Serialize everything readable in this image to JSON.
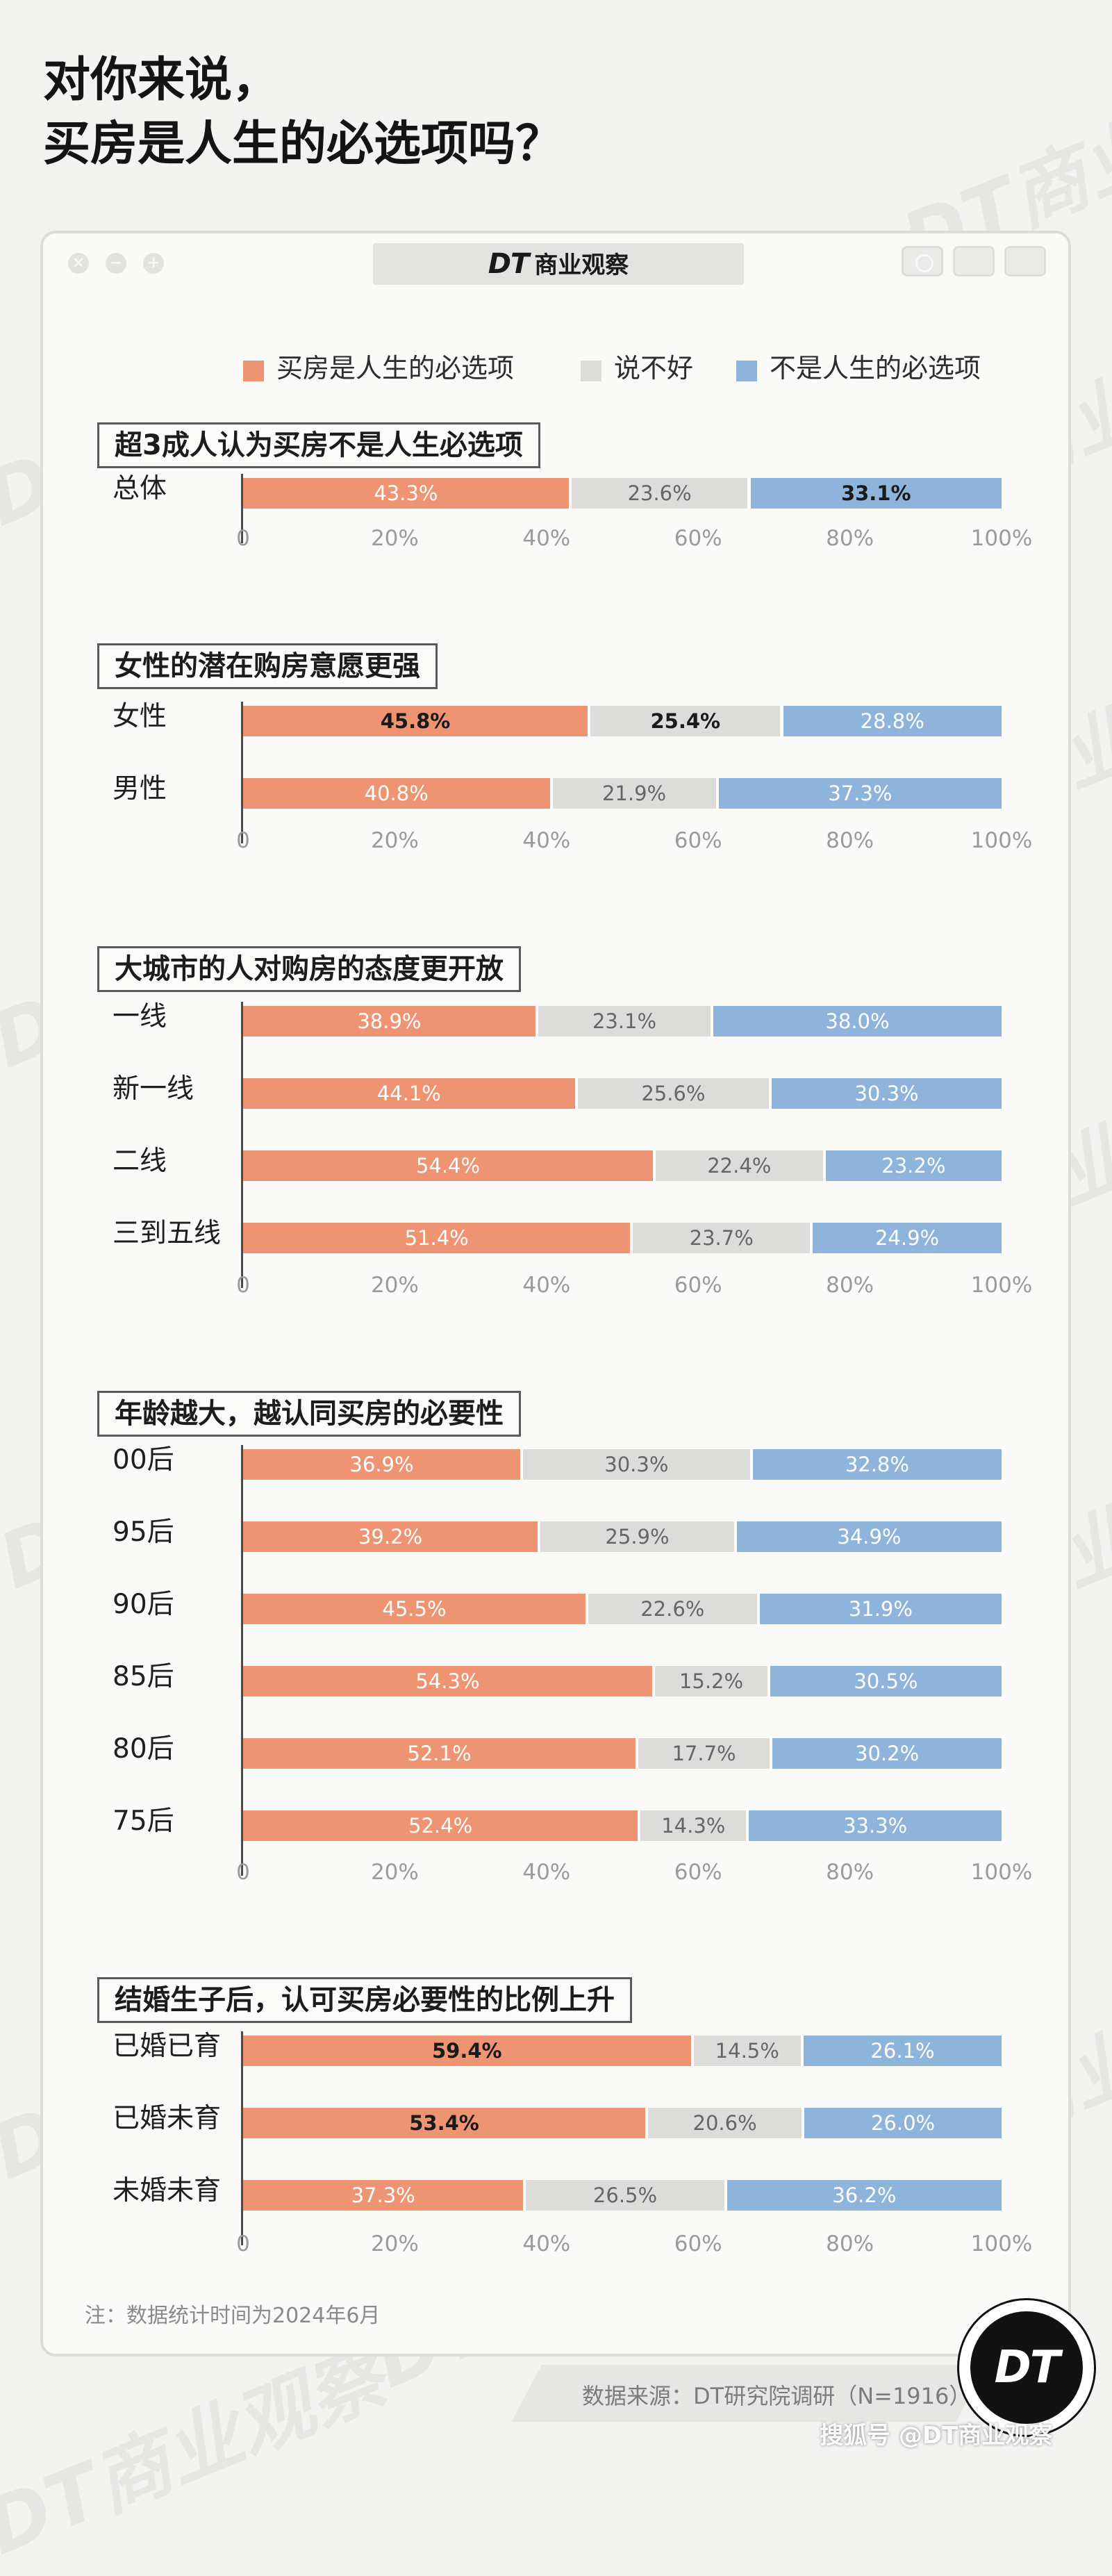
{
  "page": {
    "title_line1": "对你来说，",
    "title_line2": "买房是人生的必选项吗？",
    "watermark": "DT商业观察"
  },
  "panel": {
    "brand_mark": "DT",
    "brand_name": "商业观察"
  },
  "legend": [
    {
      "label": "买房是人生的必选项",
      "color": "#ef9472"
    },
    {
      "label": "说不好",
      "color": "#dcdcdb"
    },
    {
      "label": "不是人生的必选项",
      "color": "#8eb4dc"
    }
  ],
  "chart_data": {
    "type": "bar",
    "orientation": "horizontal",
    "stacked": true,
    "unit": "%",
    "xlim": [
      0,
      100
    ],
    "x_ticks": [
      "0",
      "20%",
      "40%",
      "60%",
      "80%",
      "100%"
    ],
    "series": [
      {
        "name": "买房是人生的必选项",
        "color": "#ef9472"
      },
      {
        "name": "说不好",
        "color": "#dcdcdb"
      },
      {
        "name": "不是人生的必选项",
        "color": "#8eb4dc"
      }
    ],
    "groups": [
      {
        "title": "超3成人认为买房不是人生必选项",
        "rows": [
          {
            "label": "总体",
            "values": [
              43.3,
              23.6,
              33.1
            ],
            "value_labels": [
              "43.3%",
              "23.6%",
              "33.1%"
            ],
            "bold": [
              false,
              false,
              true
            ]
          }
        ]
      },
      {
        "title": "女性的潜在购房意愿更强",
        "rows": [
          {
            "label": "女性",
            "values": [
              45.8,
              25.4,
              28.8
            ],
            "value_labels": [
              "45.8%",
              "25.4%",
              "28.8%"
            ],
            "bold": [
              true,
              true,
              false
            ]
          },
          {
            "label": "男性",
            "values": [
              40.8,
              21.9,
              37.3
            ],
            "value_labels": [
              "40.8%",
              "21.9%",
              "37.3%"
            ],
            "bold": [
              false,
              false,
              false
            ]
          }
        ]
      },
      {
        "title": "大城市的人对购房的态度更开放",
        "rows": [
          {
            "label": "一线",
            "values": [
              38.9,
              23.1,
              38.0
            ],
            "value_labels": [
              "38.9%",
              "23.1%",
              "38.0%"
            ],
            "bold": [
              false,
              false,
              false
            ]
          },
          {
            "label": "新一线",
            "values": [
              44.1,
              25.6,
              30.3
            ],
            "value_labels": [
              "44.1%",
              "25.6%",
              "30.3%"
            ],
            "bold": [
              false,
              false,
              false
            ]
          },
          {
            "label": "二线",
            "values": [
              54.4,
              22.4,
              23.2
            ],
            "value_labels": [
              "54.4%",
              "22.4%",
              "23.2%"
            ],
            "bold": [
              false,
              false,
              false
            ]
          },
          {
            "label": "三到五线",
            "values": [
              51.4,
              23.7,
              24.9
            ],
            "value_labels": [
              "51.4%",
              "23.7%",
              "24.9%"
            ],
            "bold": [
              false,
              false,
              false
            ]
          }
        ]
      },
      {
        "title": "年龄越大，越认同买房的必要性",
        "rows": [
          {
            "label": "00后",
            "values": [
              36.9,
              30.3,
              32.8
            ],
            "value_labels": [
              "36.9%",
              "30.3%",
              "32.8%"
            ],
            "bold": [
              false,
              false,
              false
            ]
          },
          {
            "label": "95后",
            "values": [
              39.2,
              25.9,
              34.9
            ],
            "value_labels": [
              "39.2%",
              "25.9%",
              "34.9%"
            ],
            "bold": [
              false,
              false,
              false
            ]
          },
          {
            "label": "90后",
            "values": [
              45.5,
              22.6,
              31.9
            ],
            "value_labels": [
              "45.5%",
              "22.6%",
              "31.9%"
            ],
            "bold": [
              false,
              false,
              false
            ]
          },
          {
            "label": "85后",
            "values": [
              54.3,
              15.2,
              30.5
            ],
            "value_labels": [
              "54.3%",
              "15.2%",
              "30.5%"
            ],
            "bold": [
              false,
              false,
              false
            ]
          },
          {
            "label": "80后",
            "values": [
              52.1,
              17.7,
              30.2
            ],
            "value_labels": [
              "52.1%",
              "17.7%",
              "30.2%"
            ],
            "bold": [
              false,
              false,
              false
            ]
          },
          {
            "label": "75后",
            "values": [
              52.4,
              14.3,
              33.3
            ],
            "value_labels": [
              "52.4%",
              "14.3%",
              "33.3%"
            ],
            "bold": [
              false,
              false,
              false
            ]
          }
        ]
      },
      {
        "title": "结婚生子后，认可买房必要性的比例上升",
        "rows": [
          {
            "label": "已婚已育",
            "values": [
              59.4,
              14.5,
              26.1
            ],
            "value_labels": [
              "59.4%",
              "14.5%",
              "26.1%"
            ],
            "bold": [
              true,
              false,
              false
            ]
          },
          {
            "label": "已婚未育",
            "values": [
              53.4,
              20.6,
              26.0
            ],
            "value_labels": [
              "53.4%",
              "20.6%",
              "26.0%"
            ],
            "bold": [
              true,
              false,
              false
            ]
          },
          {
            "label": "未婚未育",
            "values": [
              37.3,
              26.5,
              36.2
            ],
            "value_labels": [
              "37.3%",
              "26.5%",
              "36.2%"
            ],
            "bold": [
              false,
              false,
              false
            ]
          }
        ]
      }
    ]
  },
  "footer": {
    "note": "注：数据统计时间为2024年6月",
    "source": "数据来源：DT研究院调研（N=1916）",
    "logo_text": "DT",
    "platform_tag": "搜狐号 @DT商业观察"
  }
}
